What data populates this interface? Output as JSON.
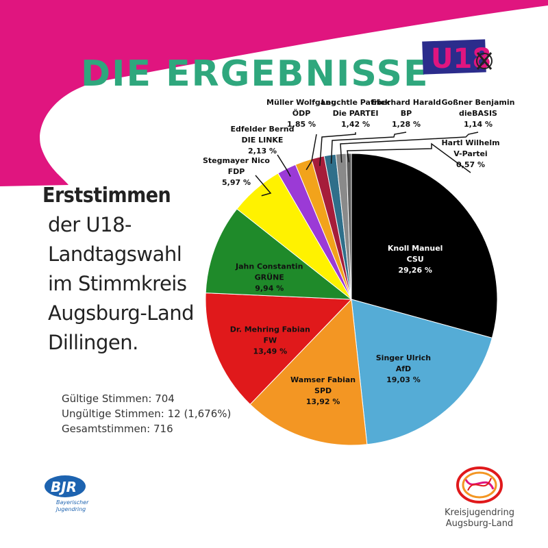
{
  "header": {
    "title": "DIE ERGEBNISSE",
    "logo_text": "U18"
  },
  "left_panel": {
    "heading": "Erststimmen",
    "lines": [
      "der U18-",
      "Landtagswahl",
      "im Stimmkreis",
      "Augsburg-Land",
      "Dillingen."
    ]
  },
  "stats": {
    "valid": "Gültige Stimmen: 704",
    "invalid": "Ungültige Stimmen: 12 (1,676%)",
    "total": "Gesamtstimmen: 716"
  },
  "footer": {
    "bjr_logo": "BJR",
    "bjr_line1": "Bayerischer",
    "bjr_line2": "Jugendring",
    "kjr_line1": "Kreisjugendring",
    "kjr_line2": "Augsburg-Land"
  },
  "colors": {
    "magenta": "#e0157f",
    "green": "#2fa77d",
    "navy": "#2b2c8c"
  },
  "chart_data": {
    "type": "pie",
    "unit": "%",
    "slices": [
      {
        "name": "Knoll Manuel",
        "party": "CSU",
        "label": "29,26 %",
        "value": 29.26,
        "color": "#000000"
      },
      {
        "name": "Singer Ulrich",
        "party": "AfD",
        "label": "19,03 %",
        "value": 19.03,
        "color": "#55acd6"
      },
      {
        "name": "Wamser Fabian",
        "party": "SPD",
        "label": "13,92 %",
        "value": 13.92,
        "color": "#f39623"
      },
      {
        "name": "Dr. Mehring Fabian",
        "party": "FW",
        "label": "13,49 %",
        "value": 13.49,
        "color": "#e0191b"
      },
      {
        "name": "Jahn Constantin",
        "party": "GRÜNE",
        "label": "9,94 %",
        "value": 9.94,
        "color": "#1f8a2a"
      },
      {
        "name": "Stegmayer Nico",
        "party": "FDP",
        "label": "5,97 %",
        "value": 5.97,
        "color": "#fff200"
      },
      {
        "name": "Edfelder Bernd",
        "party": "DIE LINKE",
        "label": "2,13 %",
        "value": 2.13,
        "color": "#9b3ad6"
      },
      {
        "name": "Müller Wolfgang",
        "party": "ÖDP",
        "label": "1,85 %",
        "value": 1.85,
        "color": "#f2a31b"
      },
      {
        "name": "Leuchtle Patrick",
        "party": "Die PARTEI",
        "label": "1,42 %",
        "value": 1.42,
        "color": "#a61d3a"
      },
      {
        "name": "Eberhard Harald",
        "party": "BP",
        "label": "1,28 %",
        "value": 1.28,
        "color": "#2f6f8a"
      },
      {
        "name": "Goßner Benjamin",
        "party": "dieBASIS",
        "label": "1,14 %",
        "value": 1.14,
        "color": "#8a8a8a"
      },
      {
        "name": "Hartl Wilhelm",
        "party": "V-Partei",
        "label": "0,57 %",
        "value": 0.57,
        "color": "#5c5c5c"
      }
    ]
  }
}
